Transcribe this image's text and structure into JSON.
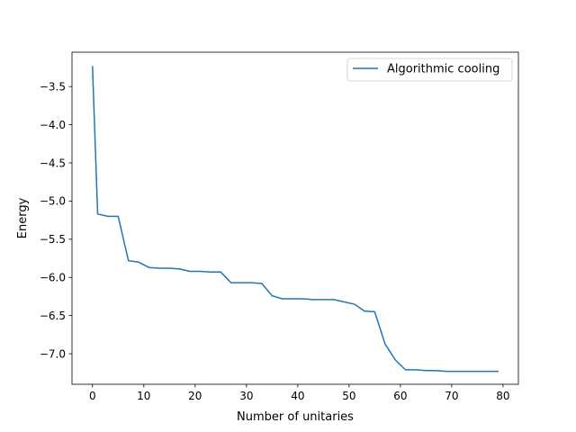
{
  "chart_data": {
    "type": "line",
    "title": "",
    "xlabel": "Number of unitaries",
    "ylabel": "Energy",
    "xlim": [
      -4,
      83
    ],
    "ylim": [
      -7.4,
      -3.05
    ],
    "xticks": [
      0,
      10,
      20,
      30,
      40,
      50,
      60,
      70,
      80
    ],
    "xtick_labels": [
      "0",
      "10",
      "20",
      "30",
      "40",
      "50",
      "60",
      "70",
      "80"
    ],
    "yticks": [
      -3.5,
      -4.0,
      -4.5,
      -5.0,
      -5.5,
      -6.0,
      -6.5,
      -7.0
    ],
    "ytick_labels": [
      "−3.5",
      "−4.0",
      "−4.5",
      "−5.0",
      "−5.5",
      "−6.0",
      "−6.5",
      "−7.0"
    ],
    "grid": false,
    "legend_position": "top-right",
    "series": [
      {
        "name": "Algorithmic cooling",
        "color": "#1f77b4",
        "x": [
          0,
          1,
          3,
          5,
          7,
          9,
          11,
          13,
          15,
          17,
          19,
          21,
          23,
          25,
          27,
          29,
          31,
          33,
          35,
          37,
          39,
          41,
          43,
          45,
          47,
          49,
          51,
          53,
          55,
          57,
          59,
          61,
          63,
          65,
          67,
          69,
          71,
          73,
          75,
          77,
          79
        ],
        "y": [
          -3.24,
          -5.17,
          -5.2,
          -5.2,
          -5.78,
          -5.8,
          -5.87,
          -5.88,
          -5.88,
          -5.89,
          -5.92,
          -5.92,
          -5.93,
          -5.93,
          -6.07,
          -6.07,
          -6.07,
          -6.08,
          -6.24,
          -6.28,
          -6.28,
          -6.28,
          -6.29,
          -6.29,
          -6.29,
          -6.32,
          -6.35,
          -6.44,
          -6.45,
          -6.87,
          -7.08,
          -7.21,
          -7.21,
          -7.22,
          -7.22,
          -7.23,
          -7.23,
          -7.23,
          -7.23,
          -7.23,
          -7.23
        ]
      }
    ]
  }
}
